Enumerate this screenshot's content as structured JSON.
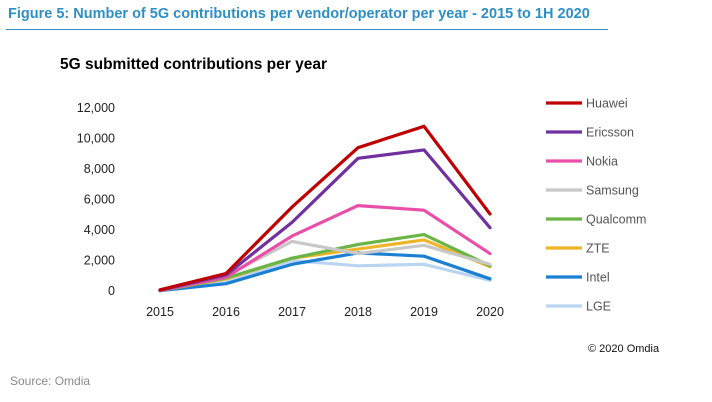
{
  "figure_title": "Figure 5: Number of 5G contributions per vendor/operator per year - 2015 to 1H 2020",
  "source": "Source: Omdia",
  "copyright": "© 2020 Omdia",
  "chart_data": {
    "type": "line",
    "title": "5G submitted contributions per year",
    "x": [
      "2015",
      "2016",
      "2017",
      "2018",
      "2019",
      "2020"
    ],
    "ylim": [
      0,
      12000
    ],
    "yticks": [
      "0",
      "2,000",
      "4,000",
      "6,000",
      "8,000",
      "10,000",
      "12,000"
    ],
    "grid": false,
    "legend_position": "right",
    "series": [
      {
        "name": "Huawei",
        "color": "#c00000",
        "values": [
          80,
          1150,
          5500,
          9400,
          10800,
          5050
        ]
      },
      {
        "name": "Ericsson",
        "color": "#7030a0",
        "values": [
          50,
          1050,
          4500,
          8700,
          9250,
          4150
        ]
      },
      {
        "name": "Nokia",
        "color": "#e94fa9",
        "values": [
          40,
          900,
          3600,
          5600,
          5300,
          2450
        ]
      },
      {
        "name": "Samsung",
        "color": "#c8c8c8",
        "values": [
          30,
          1000,
          3250,
          2450,
          3000,
          1750
        ]
      },
      {
        "name": "Qualcomm",
        "color": "#6ab546",
        "values": [
          30,
          850,
          2150,
          3050,
          3700,
          1650
        ]
      },
      {
        "name": "ZTE",
        "color": "#f0b429",
        "values": [
          30,
          800,
          2150,
          2750,
          3350,
          1600
        ]
      },
      {
        "name": "Intel",
        "color": "#1b7fd3",
        "values": [
          20,
          480,
          1750,
          2500,
          2280,
          800
        ]
      },
      {
        "name": "LGE",
        "color": "#b9d5f2",
        "values": [
          20,
          700,
          2000,
          1650,
          1750,
          700
        ]
      }
    ]
  }
}
